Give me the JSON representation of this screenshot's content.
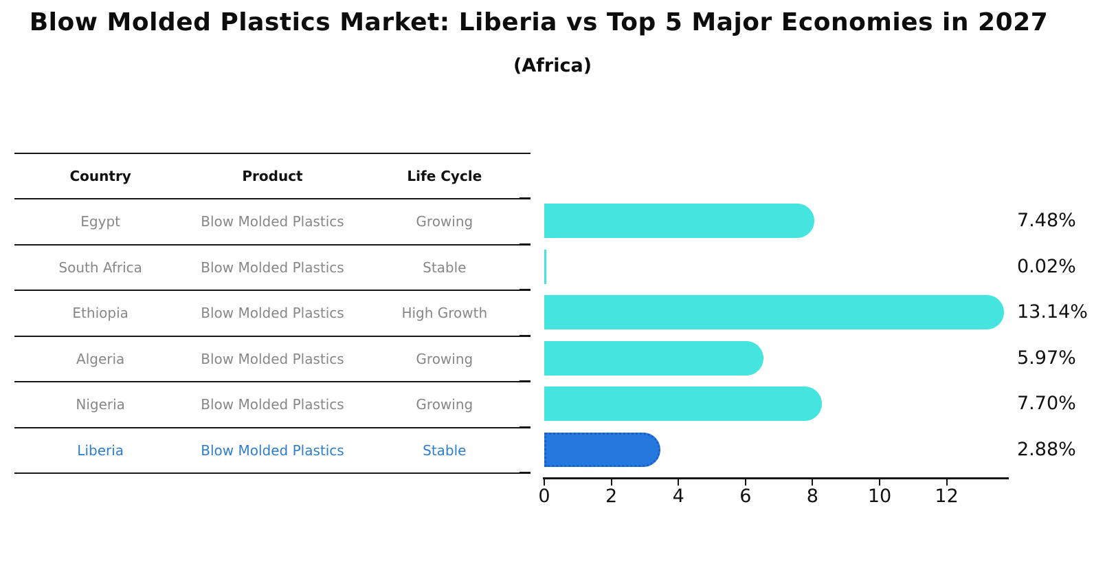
{
  "title": "Blow Molded Plastics Market: Liberia vs Top 5 Major Economies in 2027",
  "subtitle": "(Africa)",
  "colors": {
    "bar_default": "#45e4de",
    "bar_highlight": "#2478de",
    "bar_highlight_border": "#1b5fc6",
    "table_text": "#878787",
    "highlight_text": "#2e7ec8",
    "axis_line": "#151515",
    "label_text": "#111111"
  },
  "table": {
    "columns": [
      "Country",
      "Product",
      "Life Cycle"
    ],
    "rows": [
      {
        "country": "Egypt",
        "product": "Blow Molded Plastics",
        "life_cycle": "Growing",
        "highlight": false
      },
      {
        "country": "South Africa",
        "product": "Blow Molded Plastics",
        "life_cycle": "Stable",
        "highlight": false
      },
      {
        "country": "Ethiopia",
        "product": "Blow Molded Plastics",
        "life_cycle": "High Growth",
        "highlight": false
      },
      {
        "country": "Algeria",
        "product": "Blow Molded Plastics",
        "life_cycle": "Growing",
        "highlight": false
      },
      {
        "country": "Nigeria",
        "product": "Blow Molded Plastics",
        "life_cycle": "Growing",
        "highlight": false
      },
      {
        "country": "Liberia",
        "product": "Blow Molded Plastics",
        "life_cycle": "Stable",
        "highlight": true
      }
    ]
  },
  "chart_data": {
    "type": "bar",
    "orientation": "horizontal",
    "title": "Blow Molded Plastics Market: Liberia vs Top 5 Major Economies in 2027 (Africa)",
    "categories": [
      "Egypt",
      "South Africa",
      "Ethiopia",
      "Algeria",
      "Nigeria",
      "Liberia"
    ],
    "values": [
      7.48,
      0.02,
      13.14,
      5.97,
      7.7,
      2.88
    ],
    "value_labels": [
      "7.48%",
      "0.02%",
      "13.14%",
      "5.97%",
      "7.70%",
      "2.88%"
    ],
    "unit": "percent",
    "highlight_index": 5,
    "highlight_category": "Liberia",
    "x_ticks": [
      "0",
      "2",
      "4",
      "6",
      "8",
      "10",
      "12"
    ],
    "x_tick_values": [
      0,
      2,
      4,
      6,
      8,
      10,
      12
    ],
    "xlim": [
      0,
      13.7
    ],
    "xlabel": "",
    "ylabel": "",
    "grid": false,
    "legend": null
  }
}
